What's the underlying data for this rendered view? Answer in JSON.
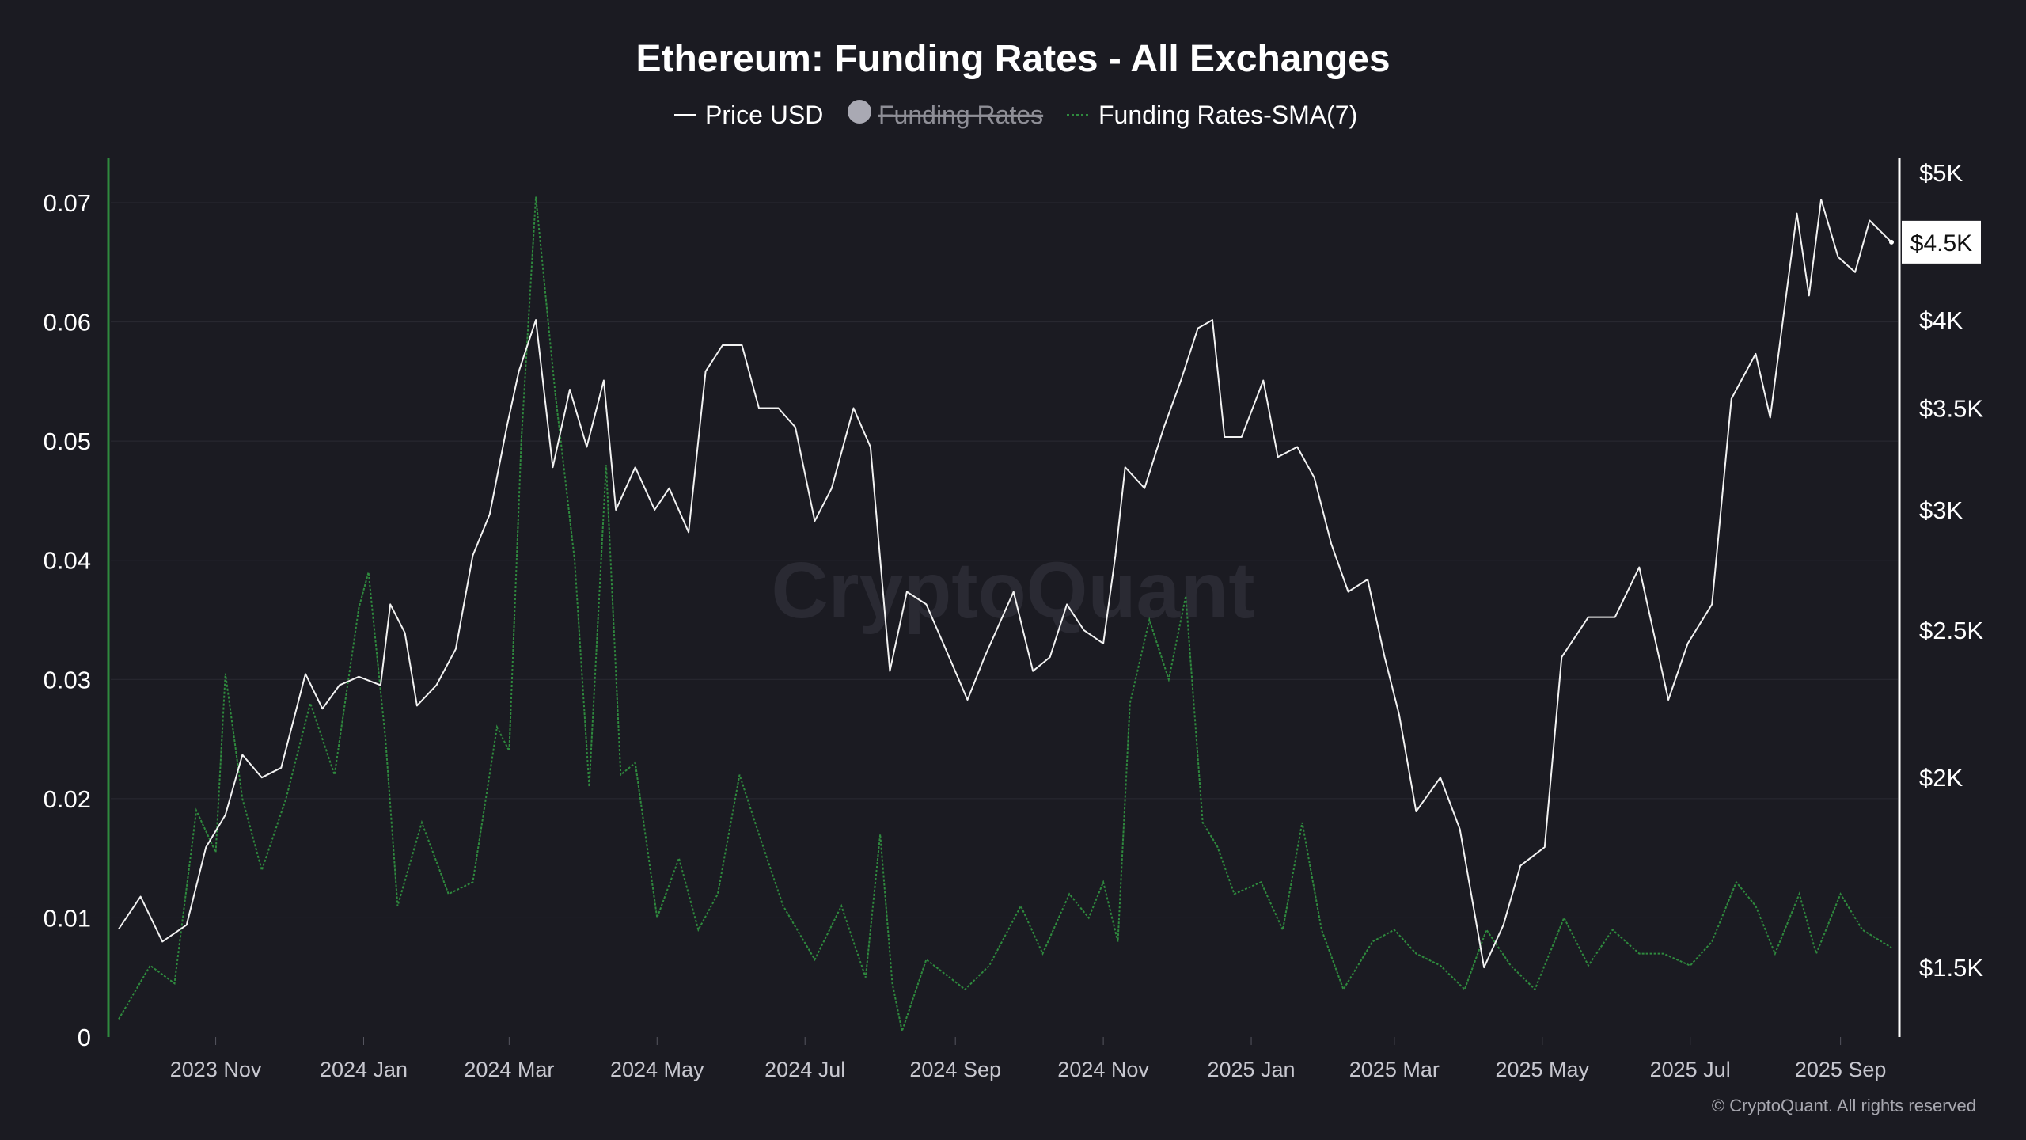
{
  "header": {
    "title": "Ethereum: Funding Rates - All Exchanges"
  },
  "legend": {
    "items": [
      {
        "label": "Price USD",
        "color": "#ffffff",
        "style": "solid-line",
        "enabled": true
      },
      {
        "label": "Funding Rates",
        "color": "#a9a9b3",
        "style": "circle",
        "enabled": false
      },
      {
        "label": "Funding Rates-SMA(7)",
        "color": "#2f8a3e",
        "style": "dashed-line",
        "enabled": true
      }
    ]
  },
  "watermark": "CryptoQuant",
  "footer": {
    "copyright": "© CryptoQuant. All rights reserved"
  },
  "colors": {
    "background": "#1b1b22",
    "price_line": "#f2f2f2",
    "sma_line": "#2f8a3e",
    "left_axis": "#2f8a3e",
    "right_axis": "#ffffff",
    "gridline": "#2a2a33"
  },
  "chart_data": {
    "type": "line",
    "title": "Ethereum: Funding Rates - All Exchanges",
    "grid": true,
    "legend_position": "top-center",
    "x_ticks": [
      "2023 Nov",
      "2024 Jan",
      "2024 Mar",
      "2024 May",
      "2024 Jul",
      "2024 Sep",
      "2024 Nov",
      "2025 Jan",
      "2025 Mar",
      "2025 May",
      "2025 Jul",
      "2025 Sep"
    ],
    "x_range": [
      "2023-09-22",
      "2025-09-22"
    ],
    "y_left": {
      "ticks": [
        "0",
        "0.01",
        "0.02",
        "0.03",
        "0.04",
        "0.05",
        "0.06",
        "0.07"
      ],
      "ylim": [
        0,
        0.07
      ]
    },
    "y_right": {
      "ticks": [
        "$1.5K",
        "$2K",
        "$2.5K",
        "$3K",
        "$3.5K",
        "$4K",
        "$4.5K",
        "$5K"
      ],
      "tick_values": [
        1500,
        2000,
        2500,
        3000,
        3500,
        4000,
        4500,
        5000
      ],
      "scale": "log",
      "ylim": [
        1350,
        5000
      ],
      "current_value_label": "$4.5K"
    },
    "series": [
      {
        "name": "Price USD",
        "axis": "right",
        "points": [
          [
            "2023-09-22",
            1590
          ],
          [
            "2023-10-01",
            1670
          ],
          [
            "2023-10-10",
            1560
          ],
          [
            "2023-10-20",
            1600
          ],
          [
            "2023-10-28",
            1800
          ],
          [
            "2023-11-05",
            1890
          ],
          [
            "2023-11-12",
            2070
          ],
          [
            "2023-11-20",
            2000
          ],
          [
            "2023-11-28",
            2030
          ],
          [
            "2023-12-08",
            2340
          ],
          [
            "2023-12-15",
            2220
          ],
          [
            "2023-12-22",
            2300
          ],
          [
            "2023-12-30",
            2330
          ],
          [
            "2024-01-08",
            2300
          ],
          [
            "2024-01-12",
            2600
          ],
          [
            "2024-01-18",
            2490
          ],
          [
            "2024-01-23",
            2230
          ],
          [
            "2024-01-31",
            2300
          ],
          [
            "2024-02-08",
            2430
          ],
          [
            "2024-02-15",
            2800
          ],
          [
            "2024-02-22",
            2980
          ],
          [
            "2024-02-29",
            3400
          ],
          [
            "2024-03-05",
            3700
          ],
          [
            "2024-03-12",
            4000
          ],
          [
            "2024-03-19",
            3200
          ],
          [
            "2024-03-26",
            3600
          ],
          [
            "2024-04-02",
            3300
          ],
          [
            "2024-04-09",
            3650
          ],
          [
            "2024-04-14",
            3000
          ],
          [
            "2024-04-22",
            3200
          ],
          [
            "2024-04-30",
            3000
          ],
          [
            "2024-05-06",
            3100
          ],
          [
            "2024-05-14",
            2900
          ],
          [
            "2024-05-21",
            3700
          ],
          [
            "2024-05-28",
            3850
          ],
          [
            "2024-06-05",
            3850
          ],
          [
            "2024-06-12",
            3500
          ],
          [
            "2024-06-20",
            3500
          ],
          [
            "2024-06-27",
            3400
          ],
          [
            "2024-07-05",
            2950
          ],
          [
            "2024-07-12",
            3100
          ],
          [
            "2024-07-21",
            3500
          ],
          [
            "2024-07-28",
            3300
          ],
          [
            "2024-08-05",
            2350
          ],
          [
            "2024-08-12",
            2650
          ],
          [
            "2024-08-20",
            2600
          ],
          [
            "2024-08-27",
            2450
          ],
          [
            "2024-09-06",
            2250
          ],
          [
            "2024-09-13",
            2400
          ],
          [
            "2024-09-25",
            2650
          ],
          [
            "2024-10-03",
            2350
          ],
          [
            "2024-10-10",
            2400
          ],
          [
            "2024-10-17",
            2600
          ],
          [
            "2024-10-24",
            2500
          ],
          [
            "2024-11-01",
            2450
          ],
          [
            "2024-11-06",
            2800
          ],
          [
            "2024-11-10",
            3200
          ],
          [
            "2024-11-18",
            3100
          ],
          [
            "2024-11-26",
            3400
          ],
          [
            "2024-12-03",
            3650
          ],
          [
            "2024-12-10",
            3950
          ],
          [
            "2024-12-16",
            4000
          ],
          [
            "2024-12-21",
            3350
          ],
          [
            "2024-12-28",
            3350
          ],
          [
            "2025-01-06",
            3650
          ],
          [
            "2025-01-12",
            3250
          ],
          [
            "2025-01-20",
            3300
          ],
          [
            "2025-01-27",
            3150
          ],
          [
            "2025-02-03",
            2850
          ],
          [
            "2025-02-10",
            2650
          ],
          [
            "2025-02-18",
            2700
          ],
          [
            "2025-02-25",
            2400
          ],
          [
            "2025-03-03",
            2200
          ],
          [
            "2025-03-10",
            1900
          ],
          [
            "2025-03-20",
            2000
          ],
          [
            "2025-03-28",
            1850
          ],
          [
            "2025-04-07",
            1500
          ],
          [
            "2025-04-15",
            1600
          ],
          [
            "2025-04-22",
            1750
          ],
          [
            "2025-05-02",
            1800
          ],
          [
            "2025-05-09",
            2400
          ],
          [
            "2025-05-20",
            2550
          ],
          [
            "2025-05-31",
            2550
          ],
          [
            "2025-06-10",
            2750
          ],
          [
            "2025-06-22",
            2250
          ],
          [
            "2025-06-30",
            2450
          ],
          [
            "2025-07-10",
            2600
          ],
          [
            "2025-07-18",
            3550
          ],
          [
            "2025-07-28",
            3800
          ],
          [
            "2025-08-03",
            3450
          ],
          [
            "2025-08-10",
            4200
          ],
          [
            "2025-08-14",
            4700
          ],
          [
            "2025-08-19",
            4150
          ],
          [
            "2025-08-24",
            4800
          ],
          [
            "2025-08-31",
            4400
          ],
          [
            "2025-09-07",
            4300
          ],
          [
            "2025-09-13",
            4650
          ],
          [
            "2025-09-22",
            4500
          ]
        ]
      },
      {
        "name": "Funding Rates-SMA(7)",
        "axis": "left",
        "points": [
          [
            "2023-09-22",
            0.0015
          ],
          [
            "2023-10-05",
            0.006
          ],
          [
            "2023-10-15",
            0.0045
          ],
          [
            "2023-10-24",
            0.019
          ],
          [
            "2023-11-01",
            0.0155
          ],
          [
            "2023-11-05",
            0.0305
          ],
          [
            "2023-11-12",
            0.02
          ],
          [
            "2023-11-20",
            0.014
          ],
          [
            "2023-11-30",
            0.02
          ],
          [
            "2023-12-10",
            0.028
          ],
          [
            "2023-12-20",
            0.022
          ],
          [
            "2023-12-30",
            0.036
          ],
          [
            "2024-01-03",
            0.039
          ],
          [
            "2024-01-10",
            0.025
          ],
          [
            "2024-01-15",
            0.011
          ],
          [
            "2024-01-25",
            0.018
          ],
          [
            "2024-02-05",
            0.012
          ],
          [
            "2024-02-15",
            0.013
          ],
          [
            "2024-02-25",
            0.026
          ],
          [
            "2024-03-01",
            0.024
          ],
          [
            "2024-03-06",
            0.05
          ],
          [
            "2024-03-12",
            0.0705
          ],
          [
            "2024-03-20",
            0.054
          ],
          [
            "2024-03-28",
            0.04
          ],
          [
            "2024-04-03",
            0.021
          ],
          [
            "2024-04-10",
            0.048
          ],
          [
            "2024-04-16",
            0.022
          ],
          [
            "2024-04-22",
            0.023
          ],
          [
            "2024-05-01",
            0.01
          ],
          [
            "2024-05-10",
            0.015
          ],
          [
            "2024-05-18",
            0.009
          ],
          [
            "2024-05-26",
            0.012
          ],
          [
            "2024-06-04",
            0.022
          ],
          [
            "2024-06-12",
            0.017
          ],
          [
            "2024-06-22",
            0.011
          ],
          [
            "2024-07-05",
            0.0065
          ],
          [
            "2024-07-16",
            0.011
          ],
          [
            "2024-07-26",
            0.005
          ],
          [
            "2024-08-01",
            0.017
          ],
          [
            "2024-08-06",
            0.0045
          ],
          [
            "2024-08-10",
            0.0005
          ],
          [
            "2024-08-20",
            0.0065
          ],
          [
            "2024-09-05",
            0.004
          ],
          [
            "2024-09-15",
            0.006
          ],
          [
            "2024-09-28",
            0.011
          ],
          [
            "2024-10-07",
            0.007
          ],
          [
            "2024-10-18",
            0.012
          ],
          [
            "2024-10-26",
            0.01
          ],
          [
            "2024-11-01",
            0.013
          ],
          [
            "2024-11-07",
            0.008
          ],
          [
            "2024-11-12",
            0.028
          ],
          [
            "2024-11-20",
            0.035
          ],
          [
            "2024-11-28",
            0.03
          ],
          [
            "2024-12-05",
            0.037
          ],
          [
            "2024-12-12",
            0.018
          ],
          [
            "2024-12-18",
            0.016
          ],
          [
            "2024-12-25",
            0.012
          ],
          [
            "2025-01-05",
            0.013
          ],
          [
            "2025-01-14",
            0.009
          ],
          [
            "2025-01-22",
            0.018
          ],
          [
            "2025-01-30",
            0.009
          ],
          [
            "2025-02-08",
            0.004
          ],
          [
            "2025-02-20",
            0.008
          ],
          [
            "2025-03-01",
            0.009
          ],
          [
            "2025-03-10",
            0.007
          ],
          [
            "2025-03-20",
            0.006
          ],
          [
            "2025-03-30",
            0.004
          ],
          [
            "2025-04-08",
            0.009
          ],
          [
            "2025-04-18",
            0.006
          ],
          [
            "2025-04-28",
            0.004
          ],
          [
            "2025-05-10",
            0.01
          ],
          [
            "2025-05-20",
            0.006
          ],
          [
            "2025-05-30",
            0.009
          ],
          [
            "2025-06-10",
            0.007
          ],
          [
            "2025-06-20",
            0.007
          ],
          [
            "2025-07-01",
            0.006
          ],
          [
            "2025-07-10",
            0.008
          ],
          [
            "2025-07-20",
            0.013
          ],
          [
            "2025-07-28",
            0.011
          ],
          [
            "2025-08-05",
            0.007
          ],
          [
            "2025-08-15",
            0.012
          ],
          [
            "2025-08-22",
            0.007
          ],
          [
            "2025-09-01",
            0.012
          ],
          [
            "2025-09-10",
            0.009
          ],
          [
            "2025-09-22",
            0.0075
          ]
        ]
      }
    ]
  }
}
